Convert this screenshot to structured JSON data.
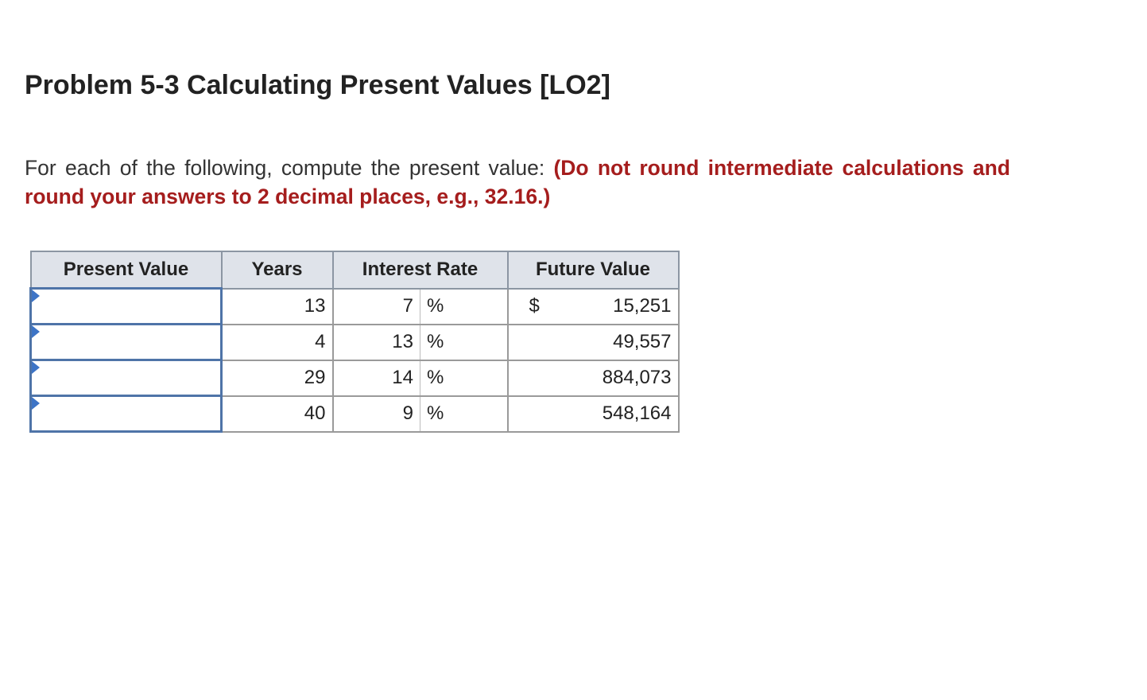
{
  "problem": {
    "title": "Problem 5-3 Calculating Present Values [LO2]",
    "instruction": "For each of the following, compute the present value:",
    "note": "(Do not round intermediate calculations and round your answers to 2 decimal places, e.g., 32.16.)"
  },
  "table": {
    "headers": {
      "present_value": "Present Value",
      "years": "Years",
      "interest_rate": "Interest Rate",
      "future_value": "Future Value"
    },
    "percent_sign": "%",
    "currency_symbol": "$",
    "rows": [
      {
        "present_value": "",
        "years": "13",
        "rate": "7",
        "future_value": "15,251"
      },
      {
        "present_value": "",
        "years": "4",
        "rate": "13",
        "future_value": "49,557"
      },
      {
        "present_value": "",
        "years": "29",
        "rate": "14",
        "future_value": "884,073"
      },
      {
        "present_value": "",
        "years": "40",
        "rate": "9",
        "future_value": "548,164"
      }
    ]
  },
  "colors": {
    "note_text": "#a51d1d",
    "header_background": "#dfe3ea",
    "input_border": "#4f74a8",
    "marker": "#3d74c6"
  }
}
